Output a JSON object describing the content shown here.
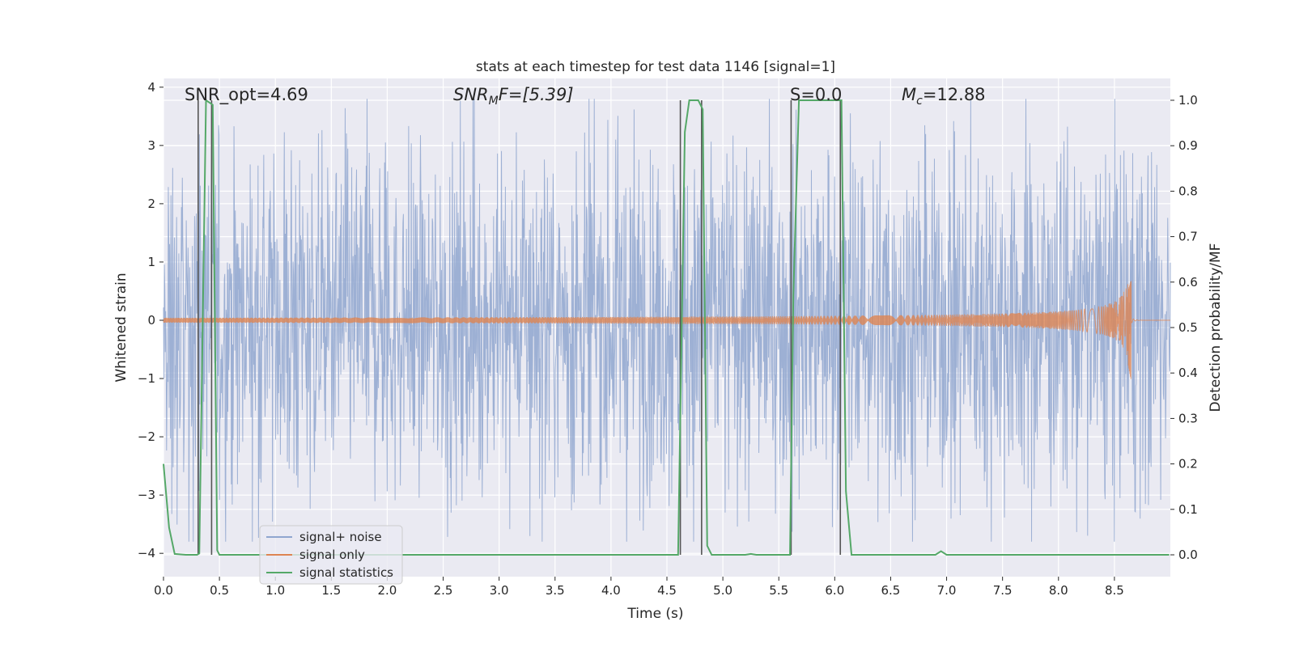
{
  "chart_data": {
    "type": "line",
    "title": "stats at each timestep for test data 1146 [signal=1]",
    "xlabel": "Time (s)",
    "ylabel": "Whitened strain",
    "y2label": "Detection probability/MF",
    "xlim": [
      0.0,
      9.0
    ],
    "ylim": [
      -4.4,
      4.15
    ],
    "y2lim": [
      -0.048,
      1.048
    ],
    "xticks": [
      0.0,
      0.5,
      1.0,
      1.5,
      2.0,
      2.5,
      3.0,
      3.5,
      4.0,
      4.5,
      5.0,
      5.5,
      6.0,
      6.5,
      7.0,
      7.5,
      8.0,
      8.5
    ],
    "xtick_labels": [
      "0.0",
      "0.5",
      "1.0",
      "1.5",
      "2.0",
      "2.5",
      "3.0",
      "3.5",
      "4.0",
      "4.5",
      "5.0",
      "5.5",
      "6.0",
      "6.5",
      "7.0",
      "7.5",
      "8.0",
      "8.5"
    ],
    "yticks": [
      -4,
      -3,
      -2,
      -1,
      0,
      1,
      2,
      3,
      4
    ],
    "ytick_labels": [
      "−4",
      "−3",
      "−2",
      "−1",
      "0",
      "1",
      "2",
      "3",
      "4"
    ],
    "y2ticks": [
      0.0,
      0.1,
      0.2,
      0.3,
      0.4,
      0.5,
      0.6,
      0.7,
      0.8,
      0.9,
      1.0
    ],
    "y2tick_labels": [
      "0.0",
      "0.1",
      "0.2",
      "0.3",
      "0.4",
      "0.5",
      "0.6",
      "0.7",
      "0.8",
      "0.9",
      "1.0"
    ],
    "grid": true,
    "legend_placement": "lower-left",
    "annotations": {
      "snr_opt": "SNR_opt=4.69",
      "snr_mf_main": "SNR",
      "snr_mf_sub": "M",
      "snr_mf_rest": "F=[5.39]",
      "s_val": "S=0.0",
      "mc_main": "M",
      "mc_sub": "c",
      "mc_rest": "=12.88"
    },
    "series": [
      {
        "name": "signal+ noise",
        "color": "#8fa6cf",
        "description_values": "whitened strain noise, roughly within ±2.5 with spikes up to ±3.8",
        "envelope": {
          "t_start": 0.0,
          "t_end": 9.0,
          "typical_abs": 1.6,
          "max_abs": 3.8,
          "seed": 1146
        }
      },
      {
        "name": "signal only",
        "color": "#dd8452",
        "chirp": {
          "t_start": 0.0,
          "t_merge": 8.65,
          "t_end": 9.0,
          "peak_pos": 0.7,
          "peak_neg": -1.05
        }
      },
      {
        "name": "signal statistics",
        "color": "#55a868",
        "x": [
          0.0,
          0.05,
          0.1,
          0.2,
          0.3,
          0.32,
          0.38,
          0.44,
          0.48,
          0.5,
          0.6,
          0.8,
          1.0,
          1.5,
          2.0,
          2.5,
          3.0,
          3.5,
          4.0,
          4.5,
          4.6,
          4.66,
          4.7,
          4.78,
          4.82,
          4.86,
          4.9,
          5.0,
          5.2,
          5.25,
          5.3,
          5.5,
          5.6,
          5.63,
          5.68,
          5.72,
          6.06,
          6.1,
          6.15,
          6.5,
          6.9,
          6.95,
          7.0,
          7.5,
          8.0,
          8.5,
          8.99
        ],
        "values": [
          0.2,
          0.06,
          0.002,
          0.0,
          0.0,
          0.003,
          1.0,
          0.99,
          0.01,
          0.0,
          0.0,
          0.0,
          0.0,
          0.0,
          0.0,
          0.0,
          0.0,
          0.0,
          0.0,
          0.0,
          0.0,
          0.93,
          1.0,
          1.0,
          0.98,
          0.02,
          0.0,
          0.0,
          0.0,
          0.002,
          0.0,
          0.0,
          0.0,
          0.57,
          1.0,
          1.0,
          1.0,
          0.14,
          0.0,
          0.0,
          0.0,
          0.008,
          0.0,
          0.0,
          0.0,
          0.0,
          0.0
        ]
      }
    ],
    "vlines": [
      0.31,
      0.43,
      4.62,
      4.81,
      5.61,
      6.05
    ]
  }
}
